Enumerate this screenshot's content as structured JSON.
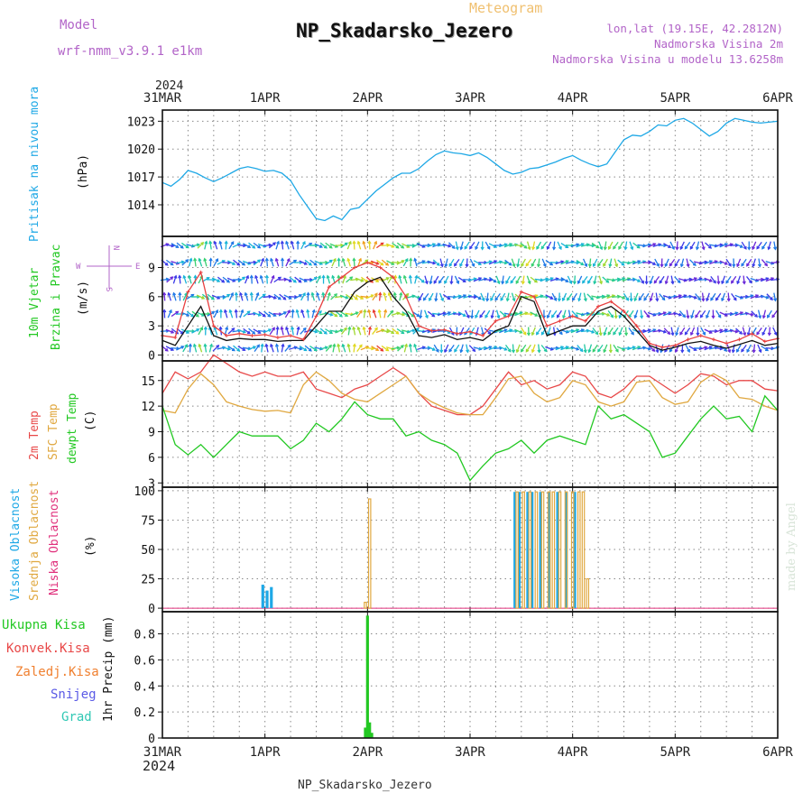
{
  "header": {
    "model_label": "Model",
    "model_version": "wrf-nmm_v3.9.1 e1km",
    "chart_kind": "Meteogram",
    "station": "NP_Skadarsko_Jezero",
    "lonlat": "lon,lat (19.15E, 42.2812N)",
    "elevation": "Nadmorska Visina 2m",
    "model_elevation": "Nadmorska Visina u modelu 13.6258m"
  },
  "footer": {
    "station": "NP_Skadarsko_Jezero",
    "credit": "made by Angel"
  },
  "axis": {
    "year": "2024",
    "dates": [
      "31MAR",
      "1APR",
      "2APR",
      "3APR",
      "4APR",
      "5APR",
      "6APR"
    ]
  },
  "colors": {
    "pressure": "#1ea8e6",
    "wind_speed": "#111111",
    "wind_gust": "#e84040",
    "temp2m": "#e84848",
    "sfc_temp": "#e0a840",
    "dewpt": "#22c822",
    "cloud_high": "#1ea8e6",
    "cloud_mid": "#e0a840",
    "cloud_low": "#e0307c",
    "precip_total": "#22c822",
    "label_purple": "#b264c8"
  },
  "panels": {
    "pressure": {
      "ylabel_name": "Pritisak na nivou mora",
      "unit": "(hPa)"
    },
    "wind": {
      "ylabel_name1": "10m Vjetar",
      "ylabel_name2": "Brzina i Pravac",
      "unit": "(m/s)",
      "compass_top": "N",
      "compass_left": "W",
      "compass_right": "E",
      "compass_bottom": "S"
    },
    "temp": {
      "label_2m": "2m Temp",
      "label_sfc": "SFC Temp",
      "label_dew": "dewpt Temp",
      "unit": "(C)"
    },
    "cloud": {
      "label_high": "Visoka Oblacnost",
      "label_mid": "Srednja Oblacnost",
      "label_low": "Niska Oblacnost",
      "unit": "(%)"
    },
    "precip": {
      "legend": [
        "Ukupna Kisa",
        "Konvek.Kisa",
        "Zaledj.Kisa",
        "Snijeg",
        "Grad"
      ],
      "legend_colors": [
        "#22c822",
        "#e84848",
        "#f08030",
        "#5a5ae6",
        "#30c8b4"
      ],
      "unit": "1hr Precip (mm)"
    }
  },
  "chart_data": [
    {
      "type": "line",
      "title": "",
      "ylabel": "Pritisak na nivou mora (hPa)",
      "x_unit": "hours since 31MAR 00Z",
      "xlim": [
        0,
        144
      ],
      "ylim": [
        1010.6,
        1024.2
      ],
      "yticks": [
        1014,
        1017,
        1020,
        1023
      ],
      "series": [
        {
          "name": "Pritisak na nivou mora",
          "x": [
            0,
            2,
            4,
            6,
            8,
            10,
            12,
            14,
            16,
            18,
            20,
            22,
            24,
            26,
            28,
            30,
            32,
            34,
            36,
            38,
            40,
            42,
            44,
            46,
            48,
            50,
            52,
            54,
            56,
            58,
            60,
            62,
            64,
            66,
            68,
            70,
            72,
            74,
            76,
            78,
            80,
            82,
            84,
            86,
            88,
            90,
            92,
            94,
            96,
            98,
            100,
            102,
            104,
            106,
            108,
            110,
            112,
            114,
            116,
            118,
            120,
            122,
            124,
            126,
            128,
            130,
            132,
            134,
            136,
            138,
            140,
            142,
            144
          ],
          "y": [
            1016.4,
            1016.0,
            1016.7,
            1017.7,
            1017.4,
            1016.9,
            1016.5,
            1016.9,
            1017.4,
            1017.9,
            1018.1,
            1017.9,
            1017.6,
            1017.7,
            1017.4,
            1016.6,
            1015.1,
            1013.8,
            1012.5,
            1012.3,
            1012.8,
            1012.4,
            1013.5,
            1013.7,
            1014.6,
            1015.5,
            1016.2,
            1016.9,
            1017.4,
            1017.4,
            1017.9,
            1018.7,
            1019.4,
            1019.8,
            1019.6,
            1019.5,
            1019.3,
            1019.6,
            1019.1,
            1018.4,
            1017.7,
            1017.3,
            1017.5,
            1017.9,
            1018.0,
            1018.3,
            1018.6,
            1019.0,
            1019.3,
            1018.8,
            1018.4,
            1018.1,
            1018.4,
            1019.7,
            1021.0,
            1021.5,
            1021.4,
            1021.9,
            1022.6,
            1022.5,
            1023.1,
            1023.3,
            1022.8,
            1022.1,
            1021.4,
            1021.9,
            1022.8,
            1023.3,
            1023.1,
            1022.9,
            1022.8,
            1022.9,
            1023.0
          ]
        }
      ]
    },
    {
      "type": "line",
      "title": "",
      "ylabel": "10m Vjetar Brzina i Pravac (m/s)",
      "x_unit": "hours since 31MAR 00Z",
      "xlim": [
        0,
        144
      ],
      "ylim": [
        -0.6,
        12.2
      ],
      "yticks": [
        0,
        3,
        6,
        9
      ],
      "series": [
        {
          "name": "wind_speed",
          "x": [
            0,
            3,
            6,
            9,
            12,
            15,
            18,
            21,
            24,
            27,
            30,
            33,
            36,
            39,
            42,
            45,
            48,
            51,
            54,
            57,
            60,
            63,
            66,
            69,
            72,
            75,
            78,
            81,
            84,
            87,
            90,
            93,
            96,
            99,
            102,
            105,
            108,
            111,
            114,
            117,
            120,
            123,
            126,
            129,
            132,
            135,
            138,
            141,
            144
          ],
          "y": [
            1.5,
            1.0,
            3.0,
            5.0,
            2.0,
            1.5,
            1.7,
            1.6,
            1.6,
            1.4,
            1.5,
            1.5,
            3.0,
            4.5,
            4.5,
            6.5,
            7.5,
            8.0,
            6.0,
            4.5,
            2.0,
            1.8,
            2.1,
            1.6,
            1.8,
            1.5,
            2.5,
            3.0,
            6.0,
            5.5,
            2.0,
            2.5,
            3.0,
            3.0,
            4.5,
            5.0,
            4.0,
            2.5,
            1.0,
            0.5,
            0.8,
            1.2,
            1.4,
            1.0,
            0.7,
            1.1,
            1.5,
            1.0,
            1.2
          ]
        },
        {
          "name": "wind_gust",
          "x": [
            0,
            3,
            6,
            9,
            12,
            15,
            18,
            21,
            24,
            27,
            30,
            33,
            36,
            39,
            42,
            45,
            48,
            51,
            54,
            57,
            60,
            63,
            66,
            69,
            72,
            75,
            78,
            81,
            84,
            87,
            90,
            93,
            96,
            99,
            102,
            105,
            108,
            111,
            114,
            117,
            120,
            123,
            126,
            129,
            132,
            135,
            138,
            141,
            144
          ],
          "y": [
            2.0,
            1.8,
            6.5,
            8.5,
            3.0,
            2.0,
            2.2,
            2.0,
            2.1,
            1.8,
            2.0,
            1.6,
            4.0,
            7.0,
            8.0,
            9.0,
            9.5,
            9.0,
            8.0,
            6.0,
            3.0,
            2.5,
            2.6,
            2.2,
            2.4,
            2.0,
            3.5,
            4.0,
            6.5,
            6.0,
            3.0,
            3.5,
            4.0,
            3.5,
            5.0,
            5.5,
            4.5,
            3.0,
            1.2,
            0.8,
            1.0,
            1.6,
            2.0,
            1.6,
            1.2,
            1.6,
            2.2,
            1.4,
            1.7
          ]
        }
      ]
    },
    {
      "type": "line",
      "title": "",
      "ylabel": "Temp (C)",
      "x_unit": "hours since 31MAR 00Z",
      "xlim": [
        0,
        144
      ],
      "ylim": [
        2.5,
        17.3
      ],
      "yticks": [
        3,
        6,
        9,
        12,
        15
      ],
      "series": [
        {
          "name": "2m Temp",
          "x": [
            0,
            3,
            6,
            9,
            12,
            15,
            18,
            21,
            24,
            27,
            30,
            33,
            36,
            39,
            42,
            45,
            48,
            51,
            54,
            57,
            60,
            63,
            66,
            69,
            72,
            75,
            78,
            81,
            84,
            87,
            90,
            93,
            96,
            99,
            102,
            105,
            108,
            111,
            114,
            117,
            120,
            123,
            126,
            129,
            132,
            135,
            138,
            141,
            144
          ],
          "y": [
            13.5,
            16.0,
            15.2,
            16.0,
            18.0,
            17.0,
            16.0,
            15.5,
            16.0,
            15.5,
            15.5,
            16.0,
            14.0,
            13.5,
            13.0,
            14.0,
            14.5,
            15.5,
            16.5,
            15.5,
            13.5,
            12.0,
            11.5,
            11.0,
            11.0,
            12.0,
            14.0,
            16.0,
            14.5,
            15.0,
            14.0,
            14.5,
            16.0,
            15.5,
            13.5,
            13.0,
            14.0,
            15.5,
            15.5,
            14.5,
            13.5,
            14.5,
            15.8,
            15.5,
            14.5,
            15.0,
            15.0,
            14.0,
            13.8
          ]
        },
        {
          "name": "SFC Temp",
          "x": [
            0,
            3,
            6,
            9,
            12,
            15,
            18,
            21,
            24,
            27,
            30,
            33,
            36,
            39,
            42,
            45,
            48,
            51,
            54,
            57,
            60,
            63,
            66,
            69,
            72,
            75,
            78,
            81,
            84,
            87,
            90,
            93,
            96,
            99,
            102,
            105,
            108,
            111,
            114,
            117,
            120,
            123,
            126,
            129,
            132,
            135,
            138,
            141,
            144
          ],
          "y": [
            11.5,
            11.2,
            14.0,
            15.8,
            14.5,
            12.5,
            12.0,
            11.6,
            11.4,
            11.5,
            11.2,
            14.5,
            16.0,
            15.0,
            13.5,
            12.8,
            12.5,
            13.5,
            14.5,
            15.5,
            13.5,
            12.5,
            11.8,
            11.2,
            11.0,
            11.0,
            13.0,
            15.2,
            15.5,
            13.5,
            12.5,
            13.0,
            15.0,
            14.5,
            12.5,
            12.0,
            12.5,
            14.8,
            15.0,
            13.0,
            12.2,
            12.5,
            14.8,
            15.8,
            15.0,
            13.0,
            12.8,
            12.0,
            11.5
          ]
        },
        {
          "name": "dewpt Temp",
          "x": [
            0,
            3,
            6,
            9,
            12,
            15,
            18,
            21,
            24,
            27,
            30,
            33,
            36,
            39,
            42,
            45,
            48,
            51,
            54,
            57,
            60,
            63,
            66,
            69,
            72,
            75,
            78,
            81,
            84,
            87,
            90,
            93,
            96,
            99,
            102,
            105,
            108,
            111,
            114,
            117,
            120,
            123,
            126,
            129,
            132,
            135,
            138,
            141,
            144
          ],
          "y": [
            12.0,
            7.5,
            6.3,
            7.5,
            6.0,
            7.5,
            9.0,
            8.5,
            8.5,
            8.5,
            7.0,
            8.0,
            10.0,
            9.0,
            10.5,
            12.5,
            11.0,
            10.5,
            10.5,
            8.5,
            9.0,
            8.0,
            7.5,
            6.5,
            3.3,
            5.0,
            6.5,
            7.0,
            8.0,
            6.5,
            8.0,
            8.5,
            8.0,
            7.5,
            12.0,
            10.5,
            11.0,
            10.0,
            9.0,
            6.0,
            6.5,
            8.5,
            10.5,
            12.0,
            10.5,
            10.8,
            9.0,
            13.2,
            11.5
          ]
        }
      ]
    },
    {
      "type": "bar",
      "title": "",
      "ylabel": "Oblacnost (%)",
      "x_unit": "hours since 31MAR 00Z",
      "xlim": [
        0,
        144
      ],
      "ylim": [
        -3,
        103
      ],
      "yticks": [
        0,
        25,
        50,
        75,
        100
      ],
      "series": [
        {
          "name": "Visoka Oblacnost",
          "x": [
            23.5,
            24.5,
            25.5,
            82.5,
            83.5,
            85.5,
            86.5,
            88.5,
            90.5,
            92.5,
            94.5,
            96.5
          ],
          "y": [
            20,
            15,
            18,
            99,
            99,
            99,
            99,
            99,
            99,
            99,
            99,
            99
          ]
        },
        {
          "name": "Srednja Oblacnost",
          "x": [
            47.5,
            48.5,
            83.0,
            84.5,
            86.0,
            87.5,
            89.0,
            90.5,
            91.5,
            93.0,
            94.5,
            96.0,
            97.5,
            98.5,
            99.5
          ],
          "y": [
            5,
            93,
            99,
            99,
            99,
            99,
            99,
            99,
            99,
            99,
            99,
            99,
            99,
            99,
            25
          ]
        },
        {
          "name": "Niska Oblacnost",
          "x": [],
          "y": []
        }
      ]
    },
    {
      "type": "bar",
      "title": "",
      "ylabel": "1hr Precip (mm)",
      "x_unit": "hours since 31MAR 00Z",
      "xlim": [
        0,
        144
      ],
      "ylim": [
        0,
        0.97
      ],
      "yticks": [
        0,
        0.2,
        0.4,
        0.6,
        0.8
      ],
      "series": [
        {
          "name": "Ukupna Kisa",
          "x": [
            47.5,
            48.0,
            48.5,
            49.0
          ],
          "y": [
            0.08,
            0.94,
            0.12,
            0.04
          ]
        }
      ]
    }
  ]
}
